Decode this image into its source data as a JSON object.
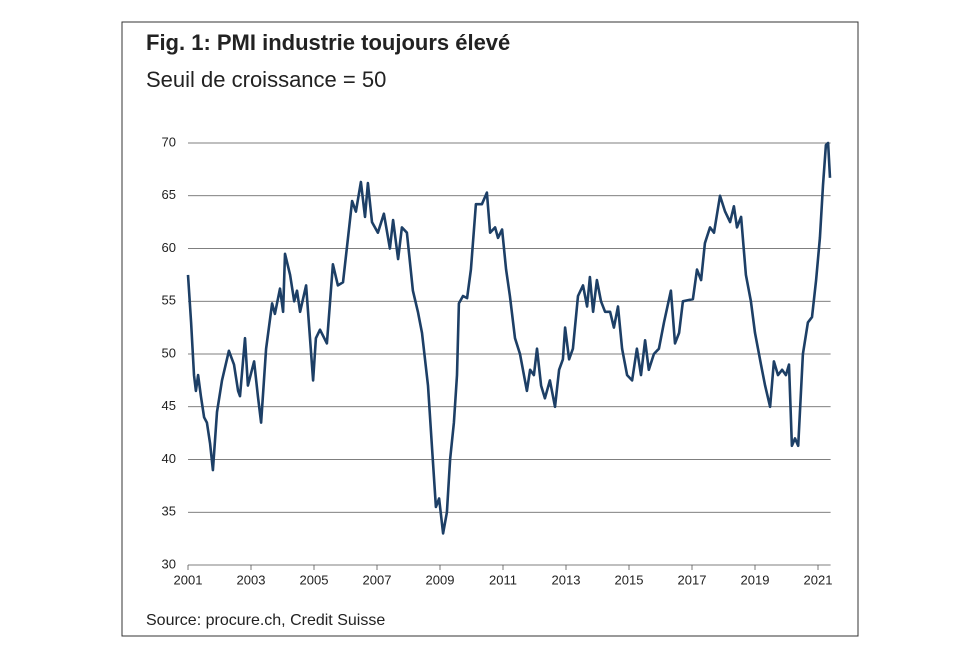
{
  "chart_data": {
    "type": "line",
    "title": "Fig. 1: PMI industrie toujours élevé",
    "subtitle": "Seuil de croissance = 50",
    "source": "Source: procure.ch, Credit Suisse",
    "color": "#1d3f66",
    "xlim": [
      2001,
      2021.4
    ],
    "xticks": [
      2001,
      2003,
      2005,
      2007,
      2009,
      2011,
      2013,
      2015,
      2017,
      2019,
      2021
    ],
    "ylim": [
      30,
      70
    ],
    "yticks": [
      30,
      35,
      40,
      45,
      50,
      55,
      60,
      65,
      70
    ],
    "grid": true,
    "x": [
      2001.0,
      2001.1,
      2001.19,
      2001.25,
      2001.32,
      2001.41,
      2001.51,
      2001.6,
      2001.7,
      2001.79,
      2001.92,
      2002.08,
      2002.3,
      2002.46,
      2002.59,
      2002.65,
      2002.81,
      2002.9,
      2003.1,
      2003.22,
      2003.32,
      2003.48,
      2003.67,
      2003.76,
      2003.92,
      2004.02,
      2004.08,
      2004.24,
      2004.37,
      2004.46,
      2004.56,
      2004.75,
      2004.97,
      2005.06,
      2005.19,
      2005.41,
      2005.6,
      2005.76,
      2005.92,
      2006.08,
      2006.21,
      2006.33,
      2006.49,
      2006.62,
      2006.71,
      2006.84,
      2007.03,
      2007.22,
      2007.41,
      2007.51,
      2007.67,
      2007.79,
      2007.95,
      2008.14,
      2008.3,
      2008.43,
      2008.62,
      2008.75,
      2008.87,
      2008.97,
      2009.1,
      2009.22,
      2009.32,
      2009.44,
      2009.54,
      2009.6,
      2009.73,
      2009.86,
      2009.98,
      2010.14,
      2010.33,
      2010.49,
      2010.59,
      2010.75,
      2010.84,
      2010.97,
      2011.1,
      2011.22,
      2011.38,
      2011.54,
      2011.76,
      2011.86,
      2011.98,
      2012.08,
      2012.21,
      2012.33,
      2012.49,
      2012.65,
      2012.78,
      2012.9,
      2012.97,
      2013.1,
      2013.22,
      2013.38,
      2013.54,
      2013.67,
      2013.76,
      2013.86,
      2013.98,
      2014.11,
      2014.24,
      2014.4,
      2014.52,
      2014.65,
      2014.78,
      2014.94,
      2015.1,
      2015.25,
      2015.38,
      2015.51,
      2015.63,
      2015.79,
      2015.95,
      2016.11,
      2016.33,
      2016.46,
      2016.59,
      2016.71,
      2017.03,
      2017.16,
      2017.29,
      2017.41,
      2017.57,
      2017.7,
      2017.89,
      2018.05,
      2018.21,
      2018.33,
      2018.43,
      2018.56,
      2018.71,
      2018.87,
      2019.0,
      2019.19,
      2019.32,
      2019.48,
      2019.6,
      2019.73,
      2019.86,
      2019.98,
      2020.08,
      2020.17,
      2020.27,
      2020.37,
      2020.52,
      2020.68,
      2020.81,
      2020.94,
      2021.06,
      2021.16,
      2021.25,
      2021.32,
      2021.38
    ],
    "values": [
      57.5,
      53,
      48,
      46.5,
      48,
      46,
      44,
      43.5,
      41.5,
      39,
      44.5,
      47.5,
      50.3,
      49,
      46.5,
      46,
      51.5,
      47,
      49.3,
      46,
      43.5,
      50.5,
      54.8,
      53.8,
      56.2,
      54,
      59.5,
      57.5,
      55,
      56,
      54,
      56.5,
      47.5,
      51.5,
      52.3,
      51,
      58.5,
      56.5,
      56.8,
      61,
      64.5,
      63.5,
      66.3,
      63,
      66.2,
      62.5,
      61.5,
      63.3,
      60,
      62.7,
      59,
      62,
      61.5,
      56,
      54,
      52,
      47,
      41,
      35.5,
      36.3,
      33,
      35,
      40,
      43.5,
      48,
      54.8,
      55.5,
      55.3,
      58,
      64.2,
      64.2,
      65.3,
      61.5,
      62,
      61,
      61.8,
      58,
      55.5,
      51.5,
      50,
      46.5,
      48.5,
      48,
      50.5,
      47,
      45.8,
      47.5,
      45,
      48.5,
      49.5,
      52.5,
      49.5,
      50.5,
      55.5,
      56.5,
      54.5,
      57.3,
      54,
      57,
      55,
      54,
      54,
      52.5,
      54.5,
      50.5,
      48,
      47.5,
      50.5,
      48,
      51.3,
      48.5,
      50,
      50.5,
      53,
      56,
      51,
      52,
      55,
      55.2,
      58,
      57,
      60.5,
      62,
      61.5,
      65,
      63.5,
      62.5,
      64,
      62,
      63,
      57.5,
      55,
      52,
      49,
      47,
      45,
      49.3,
      48,
      48.5,
      48,
      49,
      41.3,
      42,
      41.3,
      50,
      53,
      53.5,
      57,
      61,
      66,
      69.8,
      70,
      66.7
    ]
  }
}
